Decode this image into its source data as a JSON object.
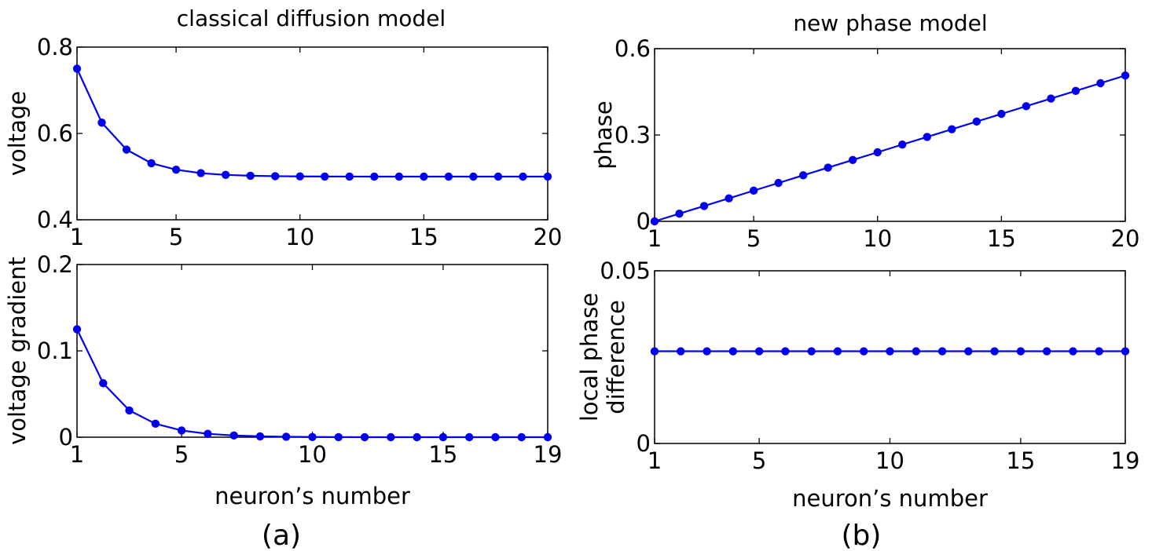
{
  "figure": {
    "left_title": "classical diffusion model",
    "right_title": "new phase model",
    "left_panel_label": "(a)",
    "right_panel_label": "(b)",
    "line_color": "#0000ee"
  },
  "chart_data": [
    {
      "id": "a_top",
      "type": "line",
      "title": "classical diffusion model",
      "xlabel": "",
      "ylabel": "voltage",
      "xlim": [
        1,
        20
      ],
      "ylim": [
        0.4,
        0.8
      ],
      "xticks": [
        1,
        5,
        10,
        15,
        20
      ],
      "yticks": [
        0.4,
        0.6,
        0.8
      ],
      "xtick_labels": [
        "1",
        "5",
        "10",
        "15",
        "20"
      ],
      "ytick_labels": [
        "0.4",
        "0.6",
        "0.8"
      ],
      "grid": false,
      "series": [
        {
          "marker": "circle",
          "x": [
            1,
            2,
            3,
            4,
            5,
            6,
            7,
            8,
            9,
            10,
            11,
            12,
            13,
            14,
            15,
            16,
            17,
            18,
            19,
            20
          ],
          "y": [
            0.75,
            0.625,
            0.5625,
            0.531,
            0.516,
            0.508,
            0.504,
            0.502,
            0.501,
            0.5005,
            0.5002,
            0.5001,
            0.5,
            0.5,
            0.5,
            0.5,
            0.5,
            0.5,
            0.5,
            0.5
          ]
        }
      ]
    },
    {
      "id": "a_bottom",
      "type": "line",
      "title": "",
      "xlabel": "neuron’s number",
      "ylabel": "voltage gradient",
      "xlim": [
        1,
        19
      ],
      "ylim": [
        0,
        0.2
      ],
      "xticks": [
        1,
        5,
        10,
        15,
        19
      ],
      "yticks": [
        0,
        0.1,
        0.2
      ],
      "xtick_labels": [
        "1",
        "5",
        "10",
        "15",
        "19"
      ],
      "ytick_labels": [
        "0",
        "0.1",
        "0.2"
      ],
      "grid": false,
      "series": [
        {
          "marker": "circle",
          "x": [
            1,
            2,
            3,
            4,
            5,
            6,
            7,
            8,
            9,
            10,
            11,
            12,
            13,
            14,
            15,
            16,
            17,
            18,
            19
          ],
          "y": [
            0.125,
            0.0625,
            0.031,
            0.0156,
            0.0078,
            0.0039,
            0.002,
            0.001,
            0.0005,
            0.0002,
            0.0001,
            0,
            0,
            0,
            0,
            0,
            0,
            0,
            0
          ]
        }
      ]
    },
    {
      "id": "b_top",
      "type": "line",
      "title": "new phase model",
      "xlabel": "",
      "ylabel": "phase",
      "xlim": [
        1,
        20
      ],
      "ylim": [
        0,
        0.6
      ],
      "xticks": [
        1,
        5,
        10,
        15,
        20
      ],
      "yticks": [
        0,
        0.3,
        0.6
      ],
      "xtick_labels": [
        "1",
        "5",
        "10",
        "15",
        "20"
      ],
      "ytick_labels": [
        "0",
        "0.3",
        "0.6"
      ],
      "grid": false,
      "series": [
        {
          "marker": "circle",
          "x": [
            1,
            2,
            3,
            4,
            5,
            6,
            7,
            8,
            9,
            10,
            11,
            12,
            13,
            14,
            15,
            16,
            17,
            18,
            19,
            20
          ],
          "y": [
            0,
            0.0267,
            0.0533,
            0.08,
            0.1067,
            0.1333,
            0.16,
            0.1867,
            0.2133,
            0.24,
            0.2667,
            0.2933,
            0.32,
            0.3467,
            0.3733,
            0.4,
            0.4267,
            0.4533,
            0.48,
            0.5067
          ]
        }
      ]
    },
    {
      "id": "b_bottom",
      "type": "line",
      "title": "",
      "xlabel": "neuron’s number",
      "ylabel": [
        "local phase",
        "difference"
      ],
      "xlim": [
        1,
        19
      ],
      "ylim": [
        0,
        0.05
      ],
      "xticks": [
        1,
        5,
        10,
        15,
        19
      ],
      "yticks": [
        0,
        0.05
      ],
      "xtick_labels": [
        "1",
        "5",
        "10",
        "15",
        "19"
      ],
      "ytick_labels": [
        "0",
        "0.05"
      ],
      "grid": false,
      "series": [
        {
          "marker": "circle",
          "x": [
            1,
            2,
            3,
            4,
            5,
            6,
            7,
            8,
            9,
            10,
            11,
            12,
            13,
            14,
            15,
            16,
            17,
            18,
            19
          ],
          "y": [
            0.0267,
            0.0267,
            0.0267,
            0.0267,
            0.0267,
            0.0267,
            0.0267,
            0.0267,
            0.0267,
            0.0267,
            0.0267,
            0.0267,
            0.0267,
            0.0267,
            0.0267,
            0.0267,
            0.0267,
            0.0267,
            0.0267
          ]
        }
      ]
    }
  ]
}
